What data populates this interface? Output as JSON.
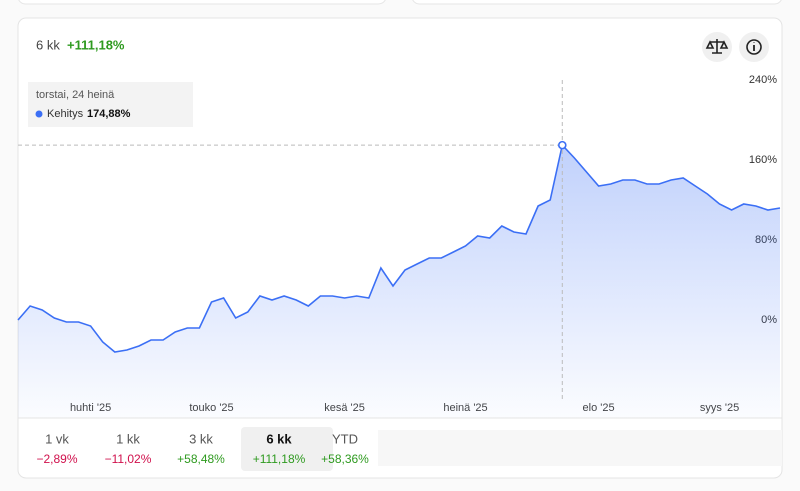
{
  "header": {
    "period": "6 kk",
    "change": "+111,18%"
  },
  "chart_data": {
    "type": "line",
    "color": "#3b6ff5",
    "grid": false,
    "categories": [
      null,
      null,
      null,
      null,
      null,
      null,
      "huhti '25",
      null,
      null,
      null,
      null,
      null,
      null,
      null,
      null,
      null,
      "touko '25",
      null,
      null,
      null,
      null,
      null,
      null,
      null,
      null,
      null,
      null,
      "kesä '25",
      null,
      null,
      null,
      null,
      null,
      null,
      null,
      null,
      null,
      "heinä '25",
      null,
      null,
      null,
      null,
      null,
      null,
      null,
      null,
      null,
      null,
      "elo '25",
      null,
      null,
      null,
      null,
      null,
      null,
      null,
      null,
      null,
      "syys '25",
      null,
      null,
      null,
      null,
      null
    ],
    "series": [
      {
        "name": "Kehitys",
        "color": "#3b6ff5",
        "values": [
          0,
          14,
          10,
          2,
          -2,
          -2,
          -6,
          -22,
          -32,
          -30,
          -26,
          -20,
          -20,
          -12,
          -8,
          -8,
          18,
          22,
          2,
          8,
          24,
          20,
          24,
          20,
          14,
          24,
          24,
          22,
          24,
          22,
          52,
          34,
          50,
          56,
          62,
          62,
          68,
          74,
          84,
          82,
          94,
          88,
          86,
          114,
          120,
          174.88,
          162,
          148,
          134,
          136,
          140,
          140,
          136,
          136,
          140,
          142,
          134,
          126,
          116,
          110,
          116,
          114,
          110,
          112
        ]
      }
    ],
    "ylim": [
      -75,
      260
    ],
    "yticks": [
      {
        "value": 0,
        "label": "0%"
      },
      {
        "value": 80,
        "label": "80%"
      },
      {
        "value": 160,
        "label": "160%"
      },
      {
        "value": 240,
        "label": "240%"
      }
    ],
    "tooltip": {
      "date": "torstai, 24 heinä",
      "value_label": "174,88%"
    }
  },
  "periods": [
    {
      "label": "1 vk",
      "change": "−2,89%"
    },
    {
      "label": "1 kk",
      "change": "−11,02%"
    },
    {
      "label": "3 kk",
      "change": "+58,48%"
    },
    {
      "label": "6 kk",
      "change": "+111,18%"
    },
    {
      "label": "YTD",
      "change": "+58,36%"
    }
  ]
}
